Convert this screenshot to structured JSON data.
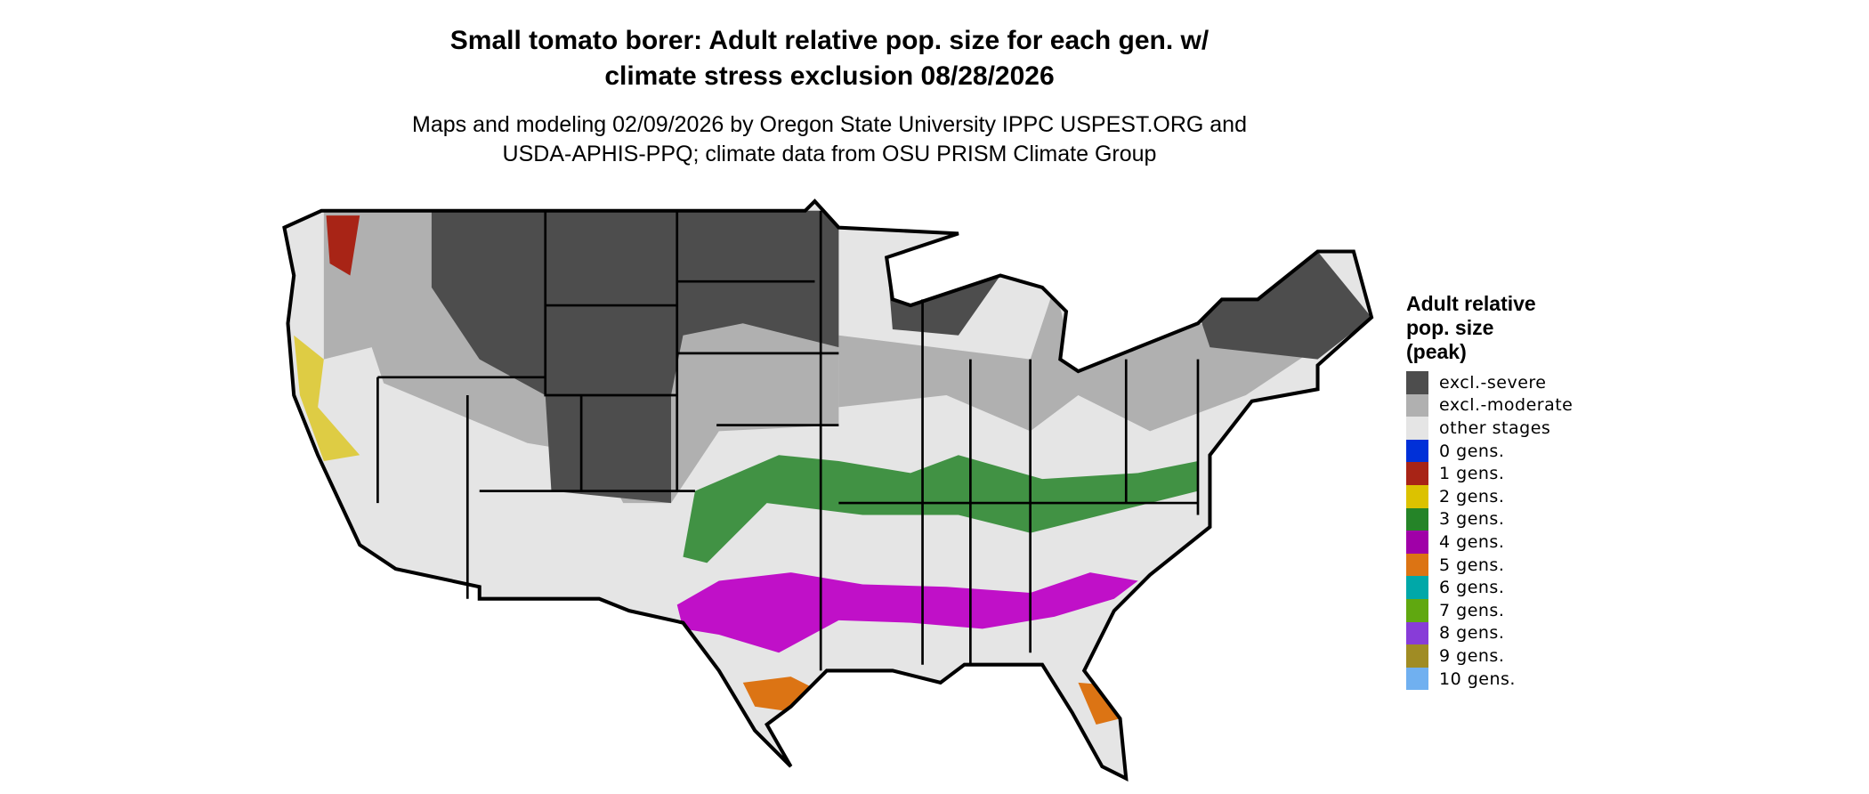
{
  "title": {
    "line1": "Small tomato borer: Adult relative pop. size for each gen. w/",
    "line2": "climate stress exclusion 08/28/2026"
  },
  "subtitle": {
    "line1": "Maps and modeling 02/09/2026 by Oregon State University IPPC USPEST.ORG and",
    "line2": "USDA-APHIS-PPQ; climate data from OSU PRISM Climate Group"
  },
  "legend": {
    "title": [
      "Adult relative",
      "pop. size",
      "(peak)"
    ],
    "items": [
      {
        "label": "excl.-severe",
        "color": "#4d4d4d"
      },
      {
        "label": "excl.-moderate",
        "color": "#b0b0b0"
      },
      {
        "label": "other stages",
        "color": "#e5e5e5"
      },
      {
        "label": "0 gens.",
        "color": "#0030d8"
      },
      {
        "label": "1 gens.",
        "color": "#a82416"
      },
      {
        "label": "2 gens.",
        "color": "#dcc200"
      },
      {
        "label": "3 gens.",
        "color": "#258428"
      },
      {
        "label": "4 gens.",
        "color": "#a000a8"
      },
      {
        "label": "5 gens.",
        "color": "#dc7414"
      },
      {
        "label": "6 gens.",
        "color": "#00a8a8"
      },
      {
        "label": "7 gens.",
        "color": "#60a810"
      },
      {
        "label": "8 gens.",
        "color": "#883cd8"
      },
      {
        "label": "9 gens.",
        "color": "#a08c24"
      },
      {
        "label": "10 gens.",
        "color": "#70b0f0"
      }
    ]
  }
}
